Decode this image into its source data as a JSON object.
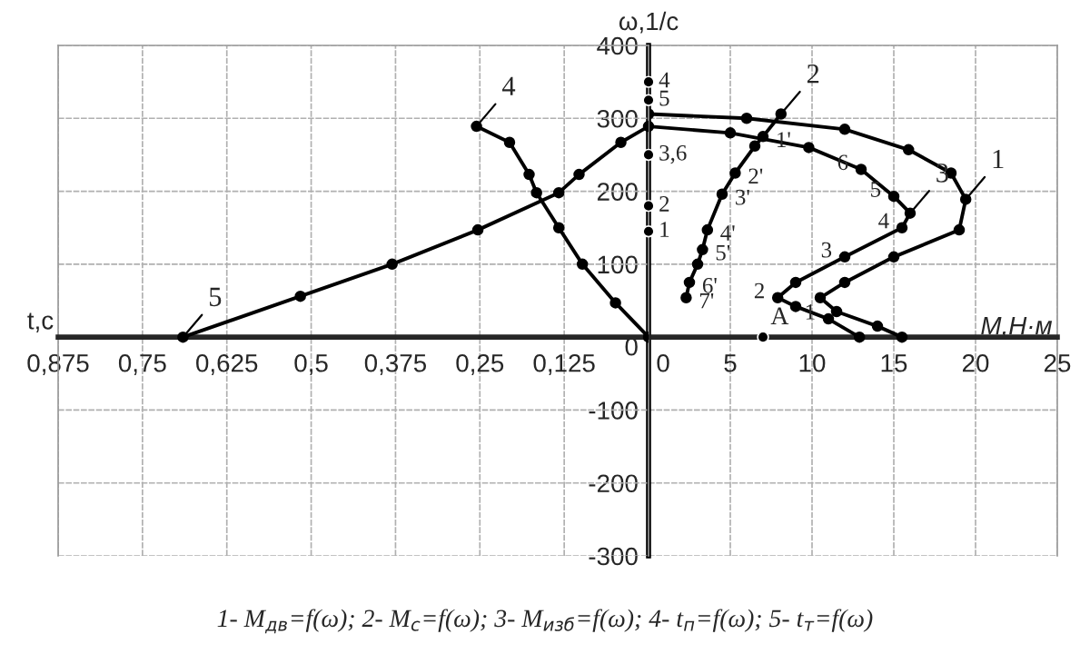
{
  "chart_data": [
    {
      "type": "line",
      "xlabel": "t,c",
      "xlim": [
        0.875,
        0
      ],
      "xticks": [
        {
          "value": 0.875,
          "label": "0,875"
        },
        {
          "value": 0.75,
          "label": "0,75"
        },
        {
          "value": 0.625,
          "label": "0,625"
        },
        {
          "value": 0.5,
          "label": "0,5"
        },
        {
          "value": 0.375,
          "label": "0,375"
        },
        {
          "value": 0.25,
          "label": "0,25"
        },
        {
          "value": 0.125,
          "label": "0,125"
        }
      ],
      "ylim": [
        -300,
        400
      ],
      "yticks": [
        -300,
        -200,
        -100,
        0,
        100,
        200,
        300,
        400
      ],
      "tick_labels": "x",
      "grid": true,
      "marker": "circle",
      "line_style": "solid",
      "series": [
        {
          "color": "#000000",
          "x": [
            0.255,
            0.206,
            0.177,
            0.166,
            0.133,
            0.098,
            0.049,
            0
          ],
          "values": [
            289,
            267,
            223,
            198,
            150,
            100,
            47,
            0
          ]
        },
        {
          "color": "#000000",
          "x": [
            0.69,
            0.516,
            0.38,
            0.253,
            0.133,
            0.103,
            0.041,
            0
          ],
          "values": [
            0,
            56,
            100,
            147,
            198,
            223,
            267,
            289
          ]
        },
        {
          "type": "scatter",
          "color": "#000000",
          "x": [
            0,
            0,
            0,
            0,
            0
          ],
          "values": [
            350,
            325,
            250,
            180,
            145
          ]
        }
      ],
      "annotations": [
        {
          "text": "4",
          "x": 0.255,
          "y": 289
        },
        {
          "text": "5",
          "x": 0.69,
          "y": 0
        },
        {
          "text": "4",
          "x": 0,
          "y": 350
        },
        {
          "text": "5",
          "x": 0,
          "y": 325
        },
        {
          "text": "3,6",
          "x": 0,
          "y": 250
        },
        {
          "text": "2",
          "x": 0,
          "y": 180
        },
        {
          "text": "1",
          "x": 0,
          "y": 145
        }
      ]
    },
    {
      "type": "line",
      "xlabel": "M,H·м",
      "ylabel": "ω,1/c",
      "xlim": [
        0,
        25
      ],
      "xticks": [
        0,
        5,
        10,
        15,
        20,
        25
      ],
      "ylim": [
        -300,
        400
      ],
      "yticks": [
        -300,
        -200,
        -100,
        0,
        100,
        200,
        300,
        400
      ],
      "grid": true,
      "marker": "circle",
      "line_style": "solid",
      "series": [
        {
          "color": "#000000",
          "x": [
            0,
            6,
            12,
            15.9,
            18.5,
            19.4,
            19.0,
            15,
            12,
            10.5,
            11.5,
            14,
            15.5
          ],
          "values": [
            306,
            300,
            285,
            257,
            225,
            189,
            147,
            110,
            75,
            54,
            35,
            15,
            0
          ]
        },
        {
          "color": "#000000",
          "x": [
            2.3,
            2.5,
            3.0,
            3.3,
            3.6,
            4.5,
            5.3,
            6.5,
            7.0,
            8.1
          ],
          "values": [
            54,
            75,
            100,
            120,
            147,
            196,
            225,
            262,
            275,
            306
          ]
        },
        {
          "color": "#000000",
          "x": [
            0,
            5,
            9.8,
            13,
            15,
            16,
            15.5,
            12,
            9,
            7.9,
            9,
            11,
            12.9
          ],
          "values": [
            289,
            280,
            260,
            230,
            193,
            170,
            150,
            110,
            75,
            54,
            42,
            25,
            0
          ]
        },
        {
          "type": "scatter",
          "name": "A",
          "color": "#000000",
          "x": [
            7
          ],
          "values": [
            0
          ]
        }
      ],
      "annotations": [
        {
          "text": "1",
          "x": 19.4,
          "y": 189
        },
        {
          "text": "2",
          "x": 8.1,
          "y": 306
        },
        {
          "text": "3",
          "x": 16,
          "y": 170
        },
        {
          "text": "1'",
          "x": 7.0,
          "y": 275
        },
        {
          "text": "2'",
          "x": 5.3,
          "y": 225
        },
        {
          "text": "3'",
          "x": 4.5,
          "y": 196
        },
        {
          "text": "4'",
          "x": 3.6,
          "y": 147
        },
        {
          "text": "5'",
          "x": 3.3,
          "y": 120
        },
        {
          "text": "6'",
          "x": 2.5,
          "y": 75
        },
        {
          "text": "7'",
          "x": 2.3,
          "y": 54
        },
        {
          "text": "1",
          "x": 11,
          "y": 25
        },
        {
          "text": "2",
          "x": 7.9,
          "y": 54
        },
        {
          "text": "3",
          "x": 12,
          "y": 110
        },
        {
          "text": "4",
          "x": 15.5,
          "y": 150
        },
        {
          "text": "5",
          "x": 15,
          "y": 193
        },
        {
          "text": "6",
          "x": 13,
          "y": 230
        },
        "1- M$_{дв}$=f(ω); 2- M$_{c}$=f(ω); 3- M$_{изб}$=f(ω); 4- t$_{п}$=f(ω); 5- t$_{т}$=f(ω)"
      ]
    }
  ]
}
